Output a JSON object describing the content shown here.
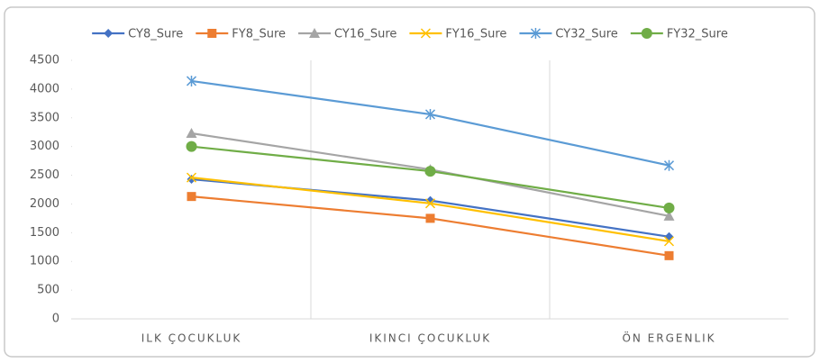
{
  "chart_data": {
    "type": "line",
    "categories": [
      "ILK ÇOCUKLUK",
      "IKINCI ÇOCUKLUK",
      "ÖN ERGENLIK"
    ],
    "series": [
      {
        "name": "CY8_Sure",
        "color": "#4472c4",
        "marker": "diamond",
        "values": [
          2430,
          2060,
          1430
        ]
      },
      {
        "name": "FY8_Sure",
        "color": "#ed7d31",
        "marker": "square",
        "values": [
          2130,
          1750,
          1100
        ]
      },
      {
        "name": "CY16_Sure",
        "color": "#a5a5a5",
        "marker": "triangle",
        "values": [
          3230,
          2600,
          1790
        ]
      },
      {
        "name": "FY16_Sure",
        "color": "#ffc000",
        "marker": "x",
        "values": [
          2460,
          2010,
          1350
        ]
      },
      {
        "name": "CY32_Sure",
        "color": "#5b9bd5",
        "marker": "star",
        "values": [
          4140,
          3560,
          2670
        ]
      },
      {
        "name": "FY32_Sure",
        "color": "#70ad47",
        "marker": "circle",
        "values": [
          3000,
          2570,
          1930
        ]
      }
    ],
    "ylim": [
      0,
      4500
    ],
    "yticks": [
      0,
      500,
      1000,
      1500,
      2000,
      2500,
      3000,
      3500,
      4000,
      4500
    ],
    "legend": "top"
  }
}
